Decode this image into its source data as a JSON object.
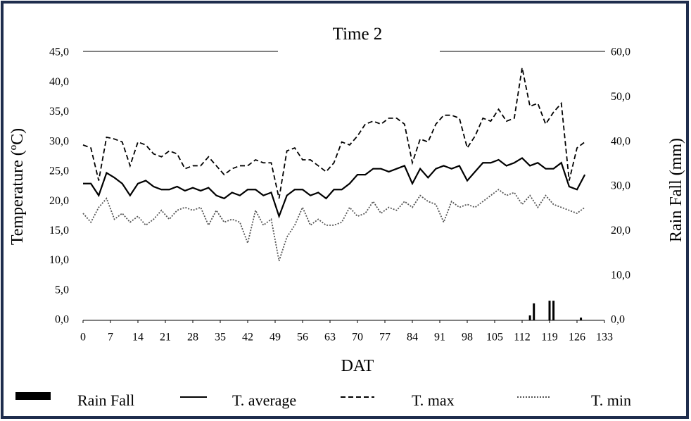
{
  "chart_data": {
    "type": "line",
    "title": "Time 2",
    "xlabel": "DAT",
    "ylabel": "Temperature (ºC)",
    "y2label": "Rain Fall (mm)",
    "x": [
      0,
      2,
      4,
      6,
      8,
      10,
      12,
      14,
      16,
      18,
      20,
      22,
      24,
      26,
      28,
      30,
      32,
      34,
      36,
      38,
      40,
      42,
      44,
      46,
      48,
      50,
      52,
      54,
      56,
      58,
      60,
      62,
      64,
      66,
      68,
      70,
      72,
      74,
      76,
      78,
      80,
      82,
      84,
      86,
      88,
      90,
      92,
      94,
      96,
      98,
      100,
      102,
      104,
      106,
      108,
      110,
      112,
      114,
      116,
      118,
      120,
      122,
      124,
      126,
      128
    ],
    "xlim": [
      0,
      133
    ],
    "xticks": [
      0,
      7,
      14,
      21,
      28,
      35,
      42,
      49,
      56,
      63,
      70,
      77,
      84,
      91,
      98,
      105,
      112,
      119,
      126,
      133
    ],
    "ylim": [
      0,
      45
    ],
    "yticks": [
      {
        "value": 0,
        "label": "0,0"
      },
      {
        "value": 5,
        "label": "5,0"
      },
      {
        "value": 10,
        "label": "10,0"
      },
      {
        "value": 15,
        "label": "15,0"
      },
      {
        "value": 20,
        "label": "20,0"
      },
      {
        "value": 25,
        "label": "25,0"
      },
      {
        "value": 30,
        "label": "30,0"
      },
      {
        "value": 35,
        "label": "35,0"
      },
      {
        "value": 40,
        "label": "40,0"
      },
      {
        "value": 45,
        "label": "45,0"
      }
    ],
    "y2lim": [
      0,
      60
    ],
    "y2ticks": [
      {
        "value": 0,
        "label": "0,0"
      },
      {
        "value": 10,
        "label": "10,0"
      },
      {
        "value": 20,
        "label": "20,0"
      },
      {
        "value": 30,
        "label": "30,0"
      },
      {
        "value": 40,
        "label": "40,0"
      },
      {
        "value": 50,
        "label": "50,0"
      },
      {
        "value": 60,
        "label": "60,0"
      }
    ],
    "series": [
      {
        "name": "Rain Fall",
        "type": "bar",
        "axis": "y2",
        "color": "#000000",
        "x": [
          114,
          115,
          119,
          120,
          127
        ],
        "values": [
          1.1,
          3.8,
          4.4,
          4.4,
          0.6
        ]
      },
      {
        "name": "T. average",
        "dash": "solid",
        "color": "#000000",
        "values": [
          23,
          23,
          21,
          24.8,
          24,
          23,
          21,
          23,
          23.5,
          22.5,
          22,
          22,
          22.5,
          21.8,
          22.3,
          21.8,
          22.3,
          21,
          20.5,
          21.5,
          21,
          22,
          22,
          21,
          21.5,
          17.5,
          21,
          22,
          22,
          21,
          21.5,
          20.5,
          22,
          22,
          23,
          24.5,
          24.5,
          25.5,
          25.5,
          25,
          25.5,
          26,
          23,
          25.5,
          24,
          25.5,
          26,
          25.5,
          26,
          23.5,
          25,
          26.5,
          26.5,
          27,
          26,
          26.5,
          27.3,
          26,
          26.5,
          25.5,
          25.5,
          26.5,
          22.5,
          22,
          24.5
        ]
      },
      {
        "name": "T. max",
        "dash": "dashed",
        "color": "#000000",
        "values": [
          29.5,
          29,
          23.5,
          30.8,
          30.5,
          30,
          26,
          30,
          29.5,
          28,
          27.5,
          28.5,
          28,
          25.5,
          26,
          26,
          27.5,
          26,
          24.5,
          25.5,
          26,
          26,
          27,
          26.5,
          26.5,
          20.5,
          28.5,
          29,
          27,
          27,
          26,
          25,
          26.5,
          30,
          29.5,
          31,
          33,
          33.5,
          33,
          34,
          34,
          33,
          26.5,
          30.5,
          30,
          33,
          34.5,
          34.5,
          34,
          29,
          31,
          34,
          33.5,
          35.5,
          33.5,
          34,
          42.5,
          36,
          36.5,
          33,
          35,
          36.5,
          23.5,
          29,
          30
        ]
      },
      {
        "name": "T. min",
        "dash": "dotted",
        "color": "#555555",
        "values": [
          18,
          16.5,
          19,
          20.5,
          17,
          18,
          16.5,
          17.5,
          16,
          17,
          18.5,
          17,
          18.5,
          19,
          18.5,
          19,
          16,
          18.5,
          16.5,
          17,
          16.5,
          13,
          18.5,
          16,
          17,
          10,
          14,
          16,
          19,
          16,
          17,
          16,
          16,
          16.5,
          19,
          17.5,
          18,
          20,
          18,
          19,
          18.5,
          20,
          19,
          21,
          20,
          19.5,
          16.5,
          20,
          19,
          19.5,
          19,
          20,
          21,
          22,
          21,
          21.5,
          19.5,
          21,
          19,
          21,
          19.5,
          19,
          18.5,
          18,
          19
        ]
      }
    ]
  }
}
